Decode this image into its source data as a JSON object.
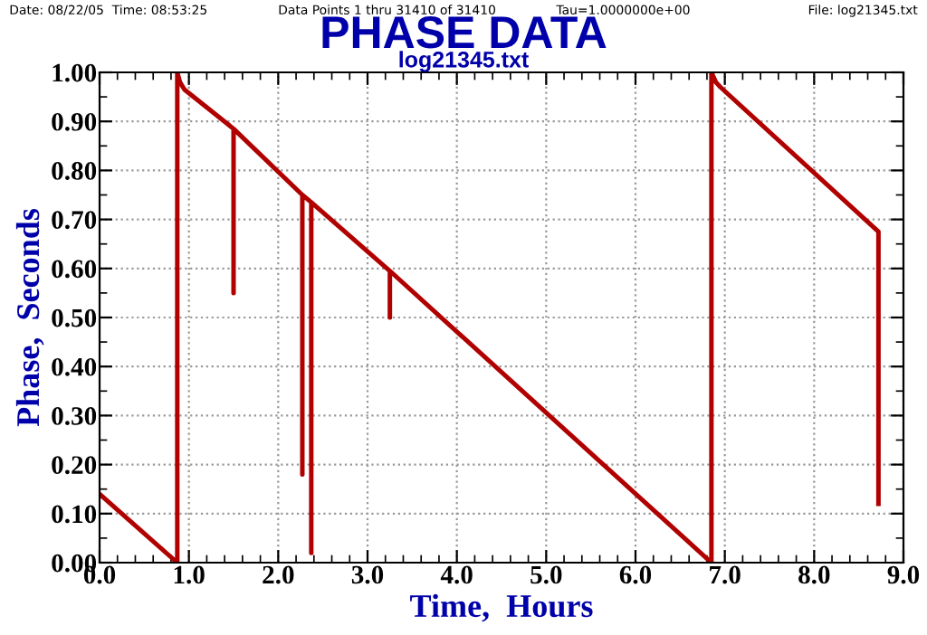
{
  "chart_data": {
    "type": "line",
    "title": "PHASE DATA",
    "subtitle": "log21345.txt",
    "xlabel": "Time,  Hours",
    "ylabel": "Phase,  Seconds",
    "annotations": [
      "Date: 08/22/05  Time: 08:53:25",
      "Data Points 1 thru 31410 of 31410",
      "Tau=1.0000000e+00",
      "File: log21345.txt"
    ],
    "series": [
      {
        "color": "#b00000",
        "x": [
          0.0,
          0.87,
          0.87,
          0.9,
          0.95,
          1.5,
          1.5,
          1.5,
          2.27,
          2.27,
          2.27,
          2.37,
          2.37,
          2.37,
          3.25,
          3.25,
          3.25,
          6.85,
          6.85,
          6.9,
          6.95,
          8.72,
          8.72
        ],
        "values": [
          0.14,
          0.0,
          1.0,
          0.98,
          0.965,
          0.885,
          0.55,
          0.885,
          0.75,
          0.18,
          0.75,
          0.735,
          0.02,
          0.735,
          0.595,
          0.5,
          0.595,
          0.0,
          1.0,
          0.98,
          0.97,
          0.675,
          0.12
        ]
      }
    ],
    "xlim": [
      0,
      9
    ],
    "ylim": [
      0,
      1
    ],
    "xticks": [
      {
        "value": 0,
        "label": "0.0"
      },
      {
        "value": 1,
        "label": "1.0"
      },
      {
        "value": 2,
        "label": "2.0"
      },
      {
        "value": 3,
        "label": "3.0"
      },
      {
        "value": 4,
        "label": "4.0"
      },
      {
        "value": 5,
        "label": "5.0"
      },
      {
        "value": 6,
        "label": "6.0"
      },
      {
        "value": 7,
        "label": "7.0"
      },
      {
        "value": 8,
        "label": "8.0"
      },
      {
        "value": 9,
        "label": "9.0"
      }
    ],
    "yticks": [
      {
        "value": 0,
        "label": "0.00"
      },
      {
        "value": 0.1,
        "label": "0.10"
      },
      {
        "value": 0.2,
        "label": "0.20"
      },
      {
        "value": 0.3,
        "label": "0.30"
      },
      {
        "value": 0.4,
        "label": "0.40"
      },
      {
        "value": 0.5,
        "label": "0.50"
      },
      {
        "value": 0.6,
        "label": "0.60"
      },
      {
        "value": 0.7,
        "label": "0.70"
      },
      {
        "value": 0.8,
        "label": "0.80"
      },
      {
        "value": 0.9,
        "label": "0.90"
      },
      {
        "value": 1,
        "label": "1.00"
      }
    ],
    "grid": true,
    "marker": "none",
    "line_style": "solid"
  }
}
